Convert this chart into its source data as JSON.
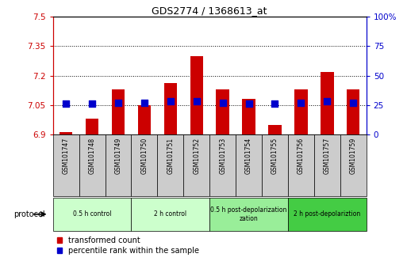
{
  "title": "GDS2774 / 1368613_at",
  "samples": [
    "GSM101747",
    "GSM101748",
    "GSM101749",
    "GSM101750",
    "GSM101751",
    "GSM101752",
    "GSM101753",
    "GSM101754",
    "GSM101755",
    "GSM101756",
    "GSM101757",
    "GSM101759"
  ],
  "transformed_count": [
    6.91,
    6.98,
    7.13,
    7.05,
    7.16,
    7.3,
    7.13,
    7.08,
    6.95,
    7.13,
    7.22,
    7.13
  ],
  "percentile_rank": [
    26,
    26,
    27,
    27,
    28,
    28,
    27,
    26,
    26,
    27,
    28,
    27
  ],
  "ylim_left": [
    6.9,
    7.5
  ],
  "ylim_right": [
    0,
    100
  ],
  "yticks_left": [
    6.9,
    7.05,
    7.2,
    7.35,
    7.5
  ],
  "yticks_right": [
    0,
    25,
    50,
    75,
    100
  ],
  "ytick_labels_left": [
    "6.9",
    "7.05",
    "7.2",
    "7.35",
    "7.5"
  ],
  "ytick_labels_right": [
    "0",
    "25",
    "50",
    "75",
    "100%"
  ],
  "left_axis_color": "#cc0000",
  "right_axis_color": "#0000cc",
  "bar_color": "#cc0000",
  "dot_color": "#0000cc",
  "grid_color": "#000000",
  "bg_color": "#ffffff",
  "protocol_groups": [
    {
      "label": "0.5 h control",
      "start": 0,
      "end": 3,
      "color": "#ccffcc"
    },
    {
      "label": "2 h control",
      "start": 3,
      "end": 6,
      "color": "#ccffcc"
    },
    {
      "label": "0.5 h post-depolarization\nzation",
      "start": 6,
      "end": 9,
      "color": "#99ee99"
    },
    {
      "label": "2 h post-depolariztion",
      "start": 9,
      "end": 12,
      "color": "#44cc44"
    }
  ],
  "xticklabel_bg": "#cccccc",
  "baseline": 6.9,
  "bar_width": 0.5,
  "dot_size": 30,
  "dot_marker_size": 5
}
